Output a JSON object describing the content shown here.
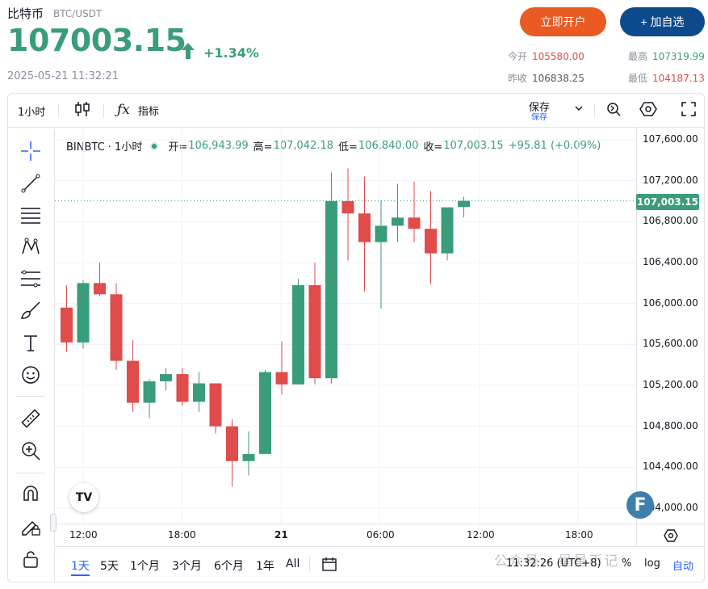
{
  "header": {
    "title": "比特币",
    "pair": "BTC/USDT",
    "price": "107003.15",
    "change": "+1.34%",
    "timestamp": "2025-05-21 11:32:21",
    "trade_button": "立即开户",
    "watch_button": "+ 加自选",
    "stats": {
      "open_label": "今开",
      "open_value": "105580.00",
      "high_label": "最高",
      "high_value": "107319.99",
      "prev_close_label": "昨收",
      "prev_close_value": "106838.25",
      "low_label": "最低",
      "low_value": "104187.13"
    }
  },
  "toolbar": {
    "interval": "1小时",
    "indicators": "指标",
    "save": "保存",
    "save_sub": "保存"
  },
  "legend": {
    "symbol": "BINBTC · 1小时",
    "o_label": "开=",
    "o_value": "106,943.99",
    "h_label": "高=",
    "h_value": "107,042.18",
    "l_label": "低=",
    "l_value": "106,840.00",
    "c_label": "收=",
    "c_value": "107,003.15",
    "chg": "+95.81 (+0.09%)"
  },
  "price_axis": {
    "ticks": [
      "107,600.00",
      "107,200.00",
      "106,800.00",
      "106,400.00",
      "106,000.00",
      "105,600.00",
      "105,200.00",
      "104,800.00",
      "104,400.00",
      "104,000.00"
    ],
    "last_price": "107,003.15"
  },
  "time_axis": [
    "12:00",
    "18:00",
    "21",
    "06:00",
    "12:00",
    "18:00"
  ],
  "ranges": [
    "1天",
    "5天",
    "1个月",
    "3个月",
    "6个月",
    "1年",
    "All"
  ],
  "status": {
    "clock": "11:32:26 (UTC+8)",
    "percent": "%",
    "log": "log",
    "auto": "自动"
  },
  "watermark": "公众号 · 星星币记",
  "colors": {
    "up": "#3a9d7a",
    "down": "#e04b4b",
    "accent": "#2962ff",
    "trade_btn": "#ea5a23",
    "watch_btn": "#0d4a8c"
  },
  "chart_data": {
    "type": "candlestick",
    "interval": "1h",
    "ylim": [
      104000,
      107600
    ],
    "candles": [
      {
        "o": 105960,
        "h": 106180,
        "l": 105530,
        "c": 105620
      },
      {
        "o": 105620,
        "h": 106230,
        "l": 105560,
        "c": 106200
      },
      {
        "o": 106200,
        "h": 106400,
        "l": 106070,
        "c": 106090
      },
      {
        "o": 106090,
        "h": 106200,
        "l": 105350,
        "c": 105440
      },
      {
        "o": 105440,
        "h": 105640,
        "l": 104940,
        "c": 105030
      },
      {
        "o": 105030,
        "h": 105260,
        "l": 104880,
        "c": 105240
      },
      {
        "o": 105240,
        "h": 105370,
        "l": 105150,
        "c": 105310
      },
      {
        "o": 105310,
        "h": 105370,
        "l": 105000,
        "c": 105040
      },
      {
        "o": 105040,
        "h": 105330,
        "l": 104940,
        "c": 105220
      },
      {
        "o": 105220,
        "h": 105220,
        "l": 104730,
        "c": 104800
      },
      {
        "o": 104800,
        "h": 104870,
        "l": 104210,
        "c": 104460
      },
      {
        "o": 104460,
        "h": 104750,
        "l": 104320,
        "c": 104530
      },
      {
        "o": 104530,
        "h": 105350,
        "l": 104530,
        "c": 105330
      },
      {
        "o": 105330,
        "h": 105630,
        "l": 105110,
        "c": 105210
      },
      {
        "o": 105210,
        "h": 106240,
        "l": 105210,
        "c": 106180
      },
      {
        "o": 106180,
        "h": 106400,
        "l": 105210,
        "c": 105270
      },
      {
        "o": 105270,
        "h": 107280,
        "l": 105220,
        "c": 107000
      },
      {
        "o": 107000,
        "h": 107320,
        "l": 106420,
        "c": 106880
      },
      {
        "o": 106880,
        "h": 107240,
        "l": 106120,
        "c": 106600
      },
      {
        "o": 106600,
        "h": 107010,
        "l": 105950,
        "c": 106760
      },
      {
        "o": 106760,
        "h": 107170,
        "l": 106600,
        "c": 106840
      },
      {
        "o": 106840,
        "h": 107190,
        "l": 106600,
        "c": 106730
      },
      {
        "o": 106730,
        "h": 107100,
        "l": 106190,
        "c": 106490
      },
      {
        "o": 106490,
        "h": 106930,
        "l": 106420,
        "c": 106940
      },
      {
        "o": 106943.99,
        "h": 107042.18,
        "l": 106840.0,
        "c": 107003.15
      }
    ],
    "last_price": 107003.15
  }
}
